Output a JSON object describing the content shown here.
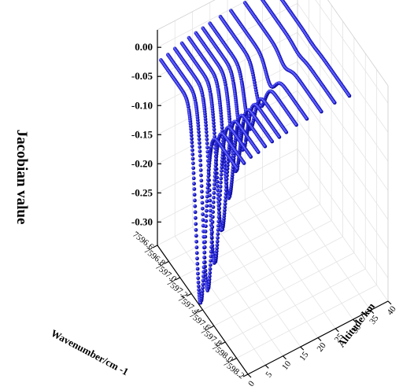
{
  "chart_data": {
    "type": "line",
    "title": "",
    "ylabel": "Jacobian value",
    "xlabel": "Wavenumber/cm -1",
    "zlabel": "Altitude/km",
    "wavenumber_ticks": [
      "7596.6",
      "7596.8",
      "7597.0",
      "7597.2",
      "7597.4",
      "7597.6",
      "7597.8",
      "7598.0",
      "7598.2"
    ],
    "altitude_ticks": [
      "0",
      "5",
      "10",
      "15",
      "20",
      "25",
      "30",
      "35",
      "40"
    ],
    "jacobian_ticks": [
      "0.00",
      "-0.05",
      "-0.10",
      "-0.15",
      "-0.20",
      "-0.25",
      "-0.30"
    ],
    "xlim": [
      7596.6,
      7598.2
    ],
    "zlim": [
      0,
      40
    ],
    "ylim": [
      -0.34,
      0.03
    ],
    "grid": true,
    "line_center_wavenumber": 7597.3,
    "series": [
      {
        "altitude": 1,
        "baseline": -0.025,
        "min": -0.345
      },
      {
        "altitude": 3,
        "baseline": -0.022,
        "min": -0.33
      },
      {
        "altitude": 5,
        "baseline": -0.018,
        "min": -0.29
      },
      {
        "altitude": 7,
        "baseline": -0.015,
        "min": -0.24
      },
      {
        "altitude": 9,
        "baseline": -0.012,
        "min": -0.19
      },
      {
        "altitude": 11,
        "baseline": -0.01,
        "min": -0.15
      },
      {
        "altitude": 13,
        "baseline": -0.008,
        "min": -0.12
      },
      {
        "altitude": 15,
        "baseline": -0.006,
        "min": -0.09
      },
      {
        "altitude": 18,
        "baseline": -0.004,
        "min": -0.06
      },
      {
        "altitude": 21,
        "baseline": -0.003,
        "min": -0.035
      },
      {
        "altitude": 25,
        "baseline": -0.002,
        "min": -0.015
      },
      {
        "altitude": 29,
        "baseline": -0.001,
        "min": -0.006
      },
      {
        "altitude": 33,
        "baseline": 0.0,
        "min": -0.002
      }
    ],
    "colors": {
      "series": "#1a1ad9",
      "series_dark": "#0a0a8a"
    }
  }
}
